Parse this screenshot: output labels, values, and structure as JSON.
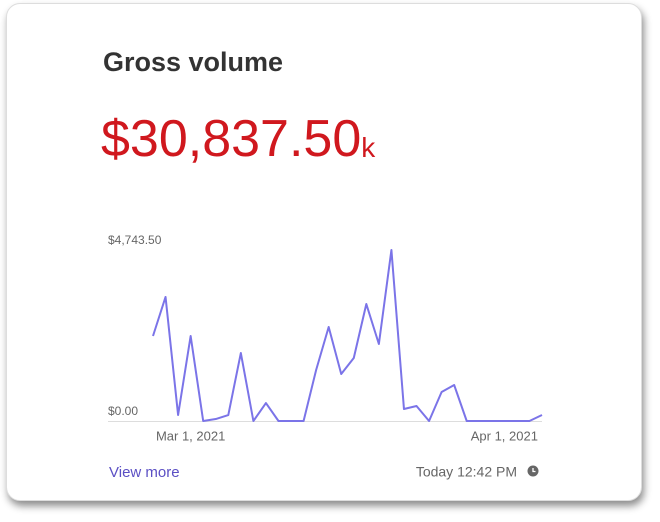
{
  "chart_data": {
    "type": "line",
    "title": "Gross volume",
    "headline": "$30,837.50",
    "headline_unit": "k",
    "categories": [
      null,
      null,
      null,
      "Mar 1, 2021",
      null,
      null,
      null,
      null,
      null,
      null,
      null,
      null,
      null,
      null,
      null,
      null,
      null,
      null,
      null,
      null,
      null,
      null,
      null,
      null,
      null,
      null,
      null,
      null,
      "Apr 1, 2021",
      null,
      null,
      null
    ],
    "series": [
      {
        "name": "Gross volume",
        "color": "#7b74e8",
        "values": [
          2358,
          3440,
          166,
          2358,
          0,
          55,
          166,
          1886,
          0,
          499,
          0,
          0,
          0,
          1415,
          2608,
          1304,
          1748,
          3245,
          2136,
          4743.5,
          333,
          416,
          0,
          804,
          999,
          0,
          0,
          0,
          0,
          0,
          0,
          166
        ]
      }
    ],
    "ylim": [
      0,
      4743.5
    ],
    "yticks": [
      {
        "value": 0,
        "label": "$0.00"
      },
      {
        "value": 4743.5,
        "label": "$4,743.50"
      }
    ],
    "grid": false,
    "link": "View more",
    "timestamp": "Today 12:42 PM"
  }
}
